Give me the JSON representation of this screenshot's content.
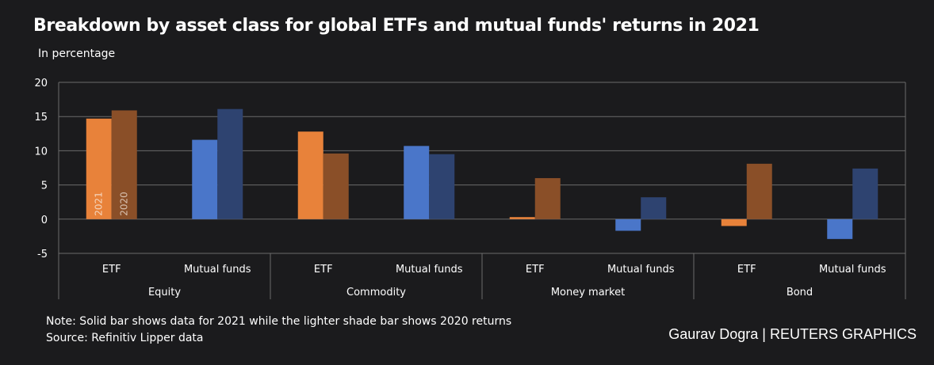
{
  "title": "Breakdown by asset class for global  ETFs and mutual funds' returns in 2021",
  "subtitle": "In percentage",
  "note": "Note: Solid bar shows data for 2021 while the lighter shade bar shows 2020 returns",
  "source": "Source: Refinitiv Lipper data",
  "credit_author": "Gaurav Dogra",
  "credit_separator": "|",
  "credit_org": "REUTERS GRAPHICS",
  "colors": {
    "background": "#1b1b1d",
    "etf_2021": "#e8823a",
    "etf_2020": "#8a4f28",
    "mf_2021": "#4a76c9",
    "mf_2020": "#2e4370",
    "grid": "#6b6b6b",
    "axis_text": "#ffffff"
  },
  "chart_data": {
    "type": "bar",
    "ylim": [
      -5,
      20
    ],
    "yticks": [
      20,
      15,
      10,
      5,
      0,
      -5
    ],
    "grid": true,
    "series_labels": [
      "2021",
      "2020"
    ],
    "groups": [
      {
        "name": "Equity",
        "bars": [
          {
            "label": "ETF",
            "kind": "etf",
            "values": [
              14.7,
              15.9
            ]
          },
          {
            "label": "Mutual funds",
            "kind": "mf",
            "values": [
              11.6,
              16.1
            ]
          }
        ]
      },
      {
        "name": "Commodity",
        "bars": [
          {
            "label": "ETF",
            "kind": "etf",
            "values": [
              12.8,
              9.6
            ]
          },
          {
            "label": "Mutual funds",
            "kind": "mf",
            "values": [
              10.7,
              9.5
            ]
          }
        ]
      },
      {
        "name": "Money market",
        "bars": [
          {
            "label": "ETF",
            "kind": "etf",
            "values": [
              0.3,
              6.0
            ]
          },
          {
            "label": "Mutual funds",
            "kind": "mf",
            "values": [
              -1.7,
              3.2
            ]
          }
        ]
      },
      {
        "name": "Bond",
        "bars": [
          {
            "label": "ETF",
            "kind": "etf",
            "values": [
              -1.0,
              8.1
            ]
          },
          {
            "label": "Mutual funds",
            "kind": "mf",
            "values": [
              -2.9,
              7.4
            ]
          }
        ]
      }
    ]
  }
}
